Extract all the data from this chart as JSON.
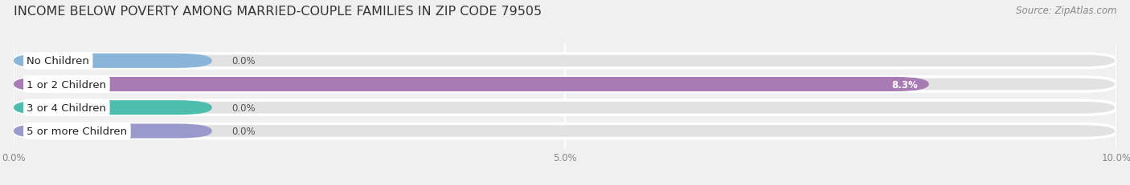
{
  "title": "INCOME BELOW POVERTY AMONG MARRIED-COUPLE FAMILIES IN ZIP CODE 79505",
  "source": "Source: ZipAtlas.com",
  "categories": [
    "No Children",
    "1 or 2 Children",
    "3 or 4 Children",
    "5 or more Children"
  ],
  "values": [
    0.0,
    8.3,
    0.0,
    0.0
  ],
  "bar_colors": [
    "#8ab4d8",
    "#a97bb5",
    "#4dbdad",
    "#9999cc"
  ],
  "background_color": "#f0f0f0",
  "bar_bg_color": "#e2e2e2",
  "bar_bg_edge_color": "#ffffff",
  "xlim": [
    0,
    10.0
  ],
  "xticks": [
    0.0,
    5.0,
    10.0
  ],
  "xticklabels": [
    "0.0%",
    "5.0%",
    "10.0%"
  ],
  "title_fontsize": 11.5,
  "source_fontsize": 8.5,
  "bar_height": 0.62,
  "bar_label_fontsize": 8.5,
  "cat_label_fontsize": 9.5,
  "zero_bar_width": 1.8
}
